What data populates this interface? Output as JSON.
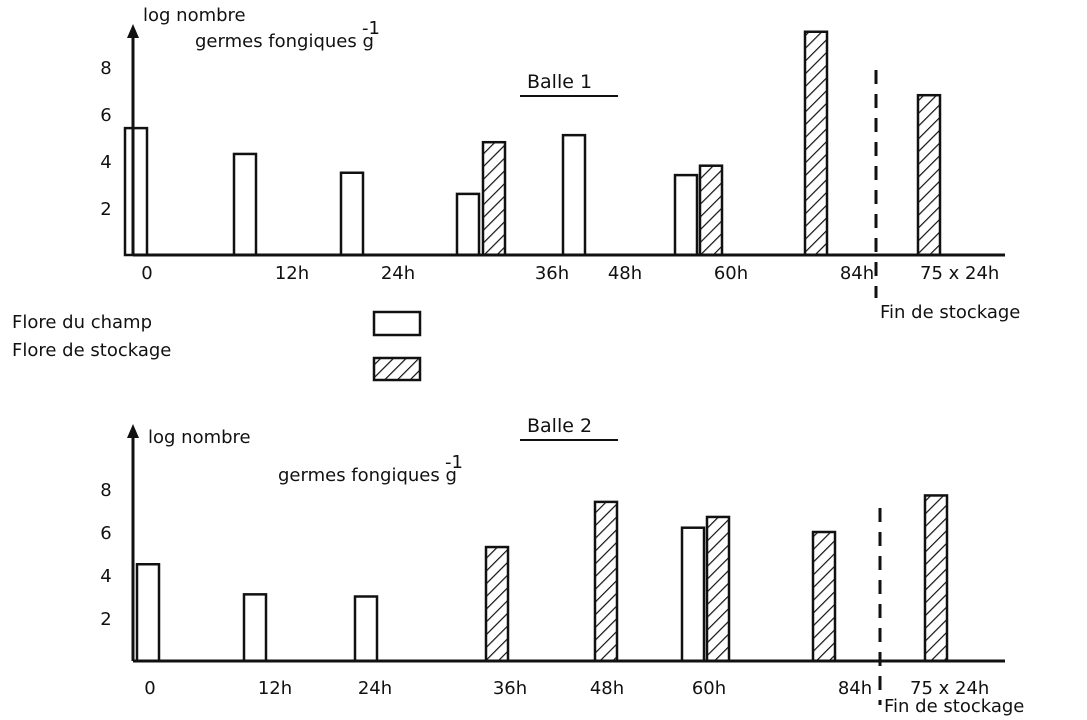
{
  "colors": {
    "ink": "#111111",
    "background": "#ffffff"
  },
  "legend": {
    "placement": "middle-left",
    "items": [
      {
        "key": "field",
        "label": "Flore du champ",
        "style": "empty"
      },
      {
        "key": "storage",
        "label": "Flore de stockage",
        "style": "hatched"
      }
    ]
  },
  "chart_data": [
    {
      "type": "bar",
      "title": "Balle 1",
      "ylabel_line1": "log nombre",
      "ylabel_line2": "germes fongiques g",
      "ylabel_exp": "-1",
      "xlabel": "",
      "ylim": [
        0,
        10
      ],
      "yticks": [
        2,
        4,
        6,
        8
      ],
      "categories": [
        "0",
        "12h",
        "24h",
        "36h",
        "48h",
        "60h",
        "84h",
        "75 x 24h"
      ],
      "end_marker_label": "Fin de stockage",
      "series": [
        {
          "name": "Flore du champ",
          "style": "field",
          "values": [
            5.4,
            4.3,
            3.5,
            2.6,
            5.1,
            3.4,
            null,
            null
          ]
        },
        {
          "name": "Flore de stockage",
          "style": "storage",
          "values": [
            null,
            null,
            null,
            4.8,
            null,
            3.8,
            9.5,
            6.8
          ]
        }
      ]
    },
    {
      "type": "bar",
      "title": "Balle 2",
      "ylabel_line1": "log nombre",
      "ylabel_line2": "germes fongiques g",
      "ylabel_exp": "-1",
      "xlabel": "",
      "ylim": [
        0,
        10
      ],
      "yticks": [
        2,
        4,
        6,
        8
      ],
      "categories": [
        "0",
        "12h",
        "24h",
        "36h",
        "48h",
        "60h",
        "84h",
        "75 x 24h"
      ],
      "end_marker_label": "Fin de stockage",
      "series": [
        {
          "name": "Flore du champ",
          "style": "field",
          "values": [
            4.5,
            3.1,
            3.0,
            null,
            null,
            6.2,
            null,
            null
          ]
        },
        {
          "name": "Flore de stockage",
          "style": "storage",
          "values": [
            null,
            null,
            null,
            5.3,
            7.4,
            6.7,
            6.0,
            7.7
          ]
        }
      ]
    }
  ]
}
